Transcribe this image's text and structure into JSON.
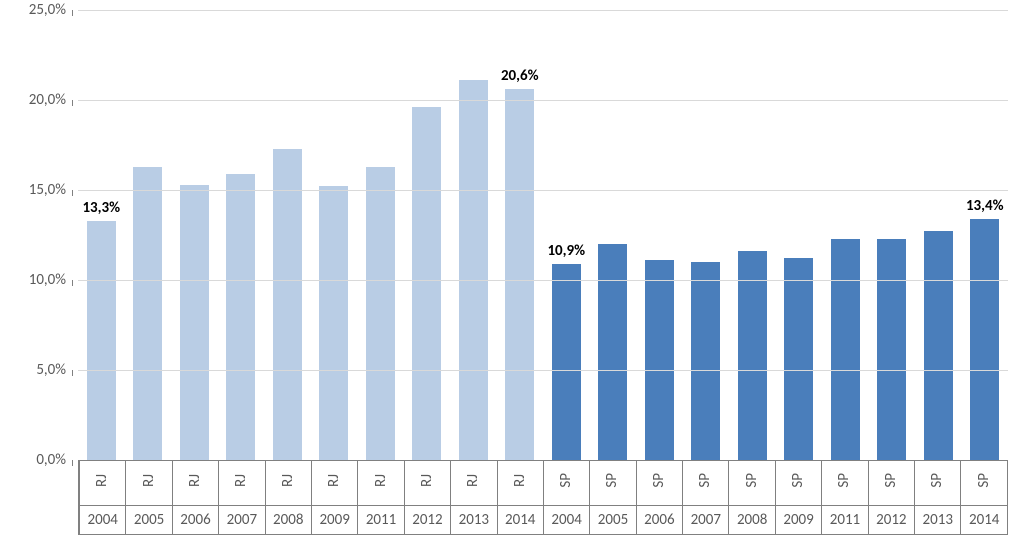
{
  "chart": {
    "type": "bar",
    "ylim": [
      0.0,
      25.0
    ],
    "ytick_step": 5.0,
    "y_tick_labels": [
      "0,0%",
      "5,0%",
      "10,0%",
      "15,0%",
      "20,0%",
      "25,0%"
    ],
    "axis_label_fontsize": 15,
    "axis_label_color": "#595959",
    "gridline_color": "#d9d9d9",
    "data_label_fontsize": 15,
    "data_label_color": "#000000",
    "background_color": "#ffffff",
    "bar_width_ratio": 0.62,
    "x_axis_border_color": "#808080",
    "x_axis_text_color": "#595959",
    "x_axis_fontsize": 15,
    "series": [
      {
        "name": "RJ",
        "color": "#b9cde5",
        "points": [
          {
            "year": "2004",
            "value": 13.3,
            "label": "13,3%"
          },
          {
            "year": "2005",
            "value": 16.3
          },
          {
            "year": "2006",
            "value": 15.3
          },
          {
            "year": "2007",
            "value": 15.9
          },
          {
            "year": "2008",
            "value": 17.3
          },
          {
            "year": "2009",
            "value": 15.2
          },
          {
            "year": "2011",
            "value": 16.3
          },
          {
            "year": "2012",
            "value": 19.6
          },
          {
            "year": "2013",
            "value": 21.1
          },
          {
            "year": "2014",
            "value": 20.6,
            "label": "20,6%"
          }
        ]
      },
      {
        "name": "SP",
        "color": "#4a7ebb",
        "points": [
          {
            "year": "2004",
            "value": 10.9,
            "label": "10,9%"
          },
          {
            "year": "2005",
            "value": 12.0
          },
          {
            "year": "2006",
            "value": 11.1
          },
          {
            "year": "2007",
            "value": 11.0
          },
          {
            "year": "2008",
            "value": 11.6
          },
          {
            "year": "2009",
            "value": 11.2
          },
          {
            "year": "2011",
            "value": 12.3
          },
          {
            "year": "2012",
            "value": 12.3
          },
          {
            "year": "2013",
            "value": 12.7
          },
          {
            "year": "2014",
            "value": 13.4,
            "label": "13,4%"
          }
        ]
      }
    ]
  }
}
